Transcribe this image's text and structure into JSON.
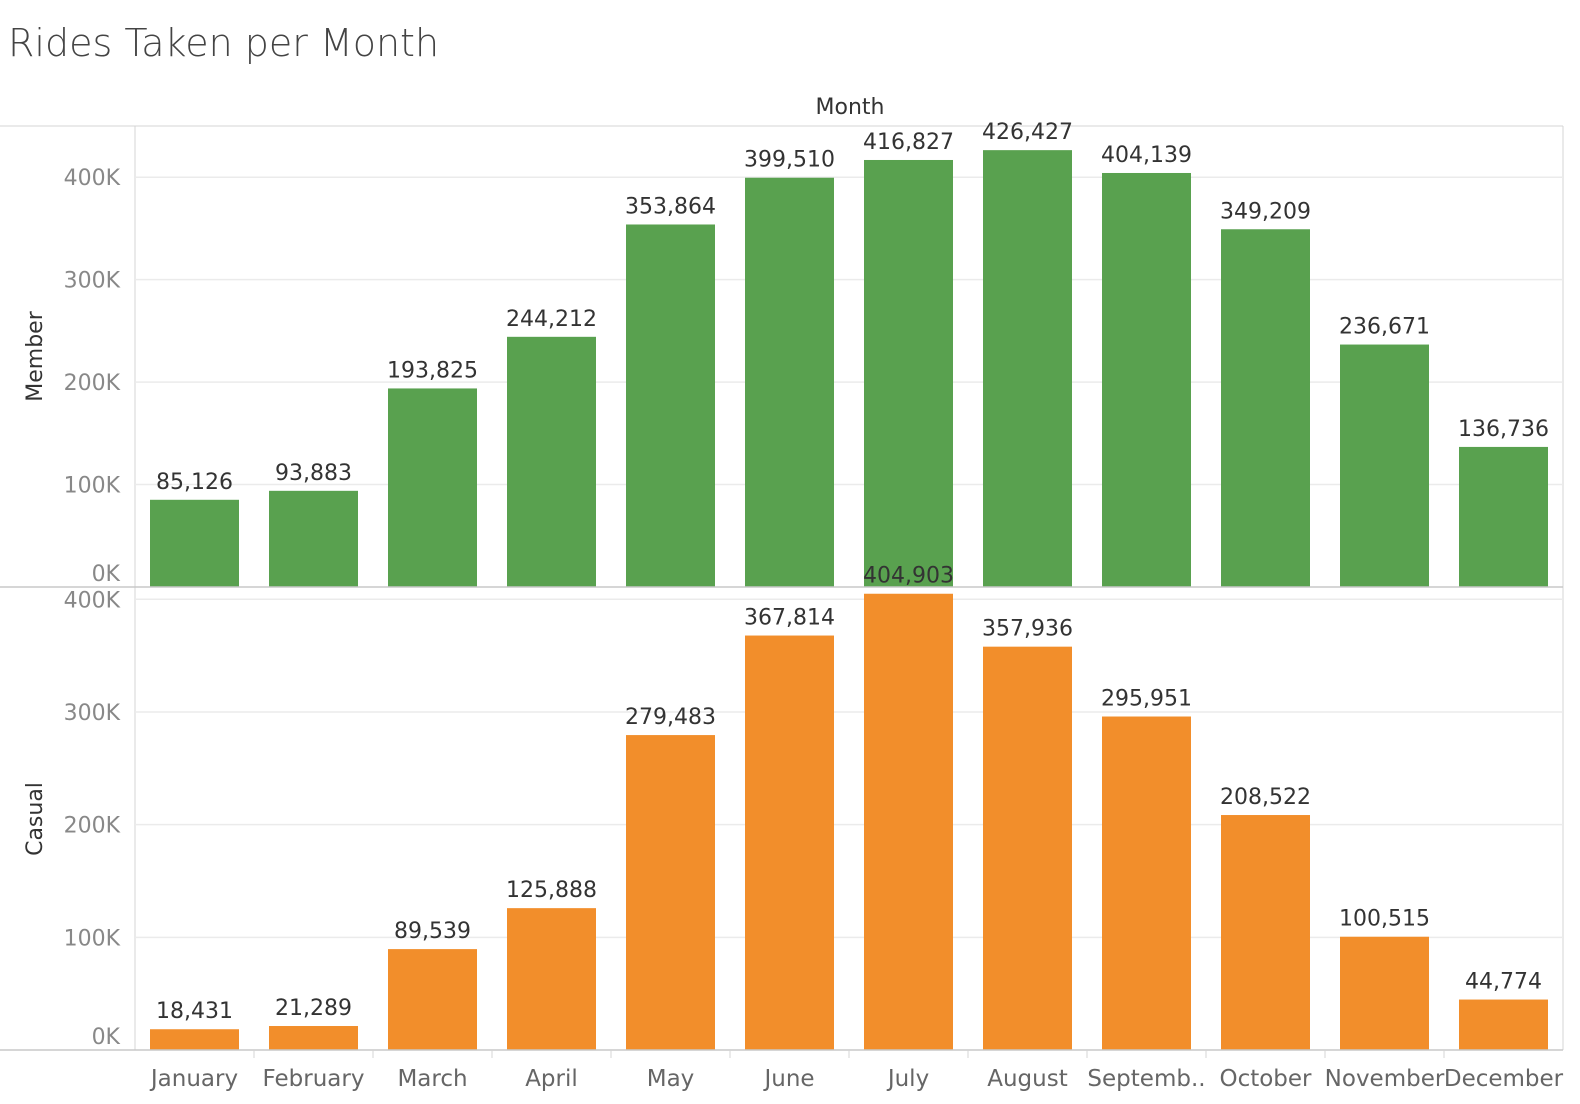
{
  "chart_data": {
    "type": "bar",
    "title": "Rides Taken per Month",
    "column_header": "Month",
    "categories": [
      "January",
      "February",
      "March",
      "April",
      "May",
      "June",
      "July",
      "August",
      "Septemb..",
      "October",
      "November",
      "December"
    ],
    "panels": [
      {
        "name": "Member",
        "color": "#59a14f",
        "values": [
          85126,
          93883,
          193825,
          244212,
          353864,
          399510,
          416827,
          426427,
          404139,
          349209,
          236671,
          136736
        ],
        "labels": [
          "85,126",
          "93,883",
          "193,825",
          "244,212",
          "353,864",
          "399,510",
          "416,827",
          "426,427",
          "404,139",
          "349,209",
          "236,671",
          "136,736"
        ],
        "ylim": [
          0,
          450000
        ],
        "ticks": [
          0,
          100000,
          200000,
          300000,
          400000
        ],
        "tick_labels": [
          "0K",
          "100K",
          "200K",
          "300K",
          "400K"
        ]
      },
      {
        "name": "Casual",
        "color": "#f28e2b",
        "values": [
          18431,
          21289,
          89539,
          125888,
          279483,
          367814,
          404903,
          357936,
          295951,
          208522,
          100515,
          44774
        ],
        "labels": [
          "18,431",
          "21,289",
          "89,539",
          "125,888",
          "279,483",
          "367,814",
          "404,903",
          "357,936",
          "295,951",
          "208,522",
          "100,515",
          "44,774"
        ],
        "ylim": [
          0,
          410000
        ],
        "ticks": [
          0,
          100000,
          200000,
          300000,
          400000
        ],
        "tick_labels": [
          "0K",
          "100K",
          "200K",
          "300K",
          "400K"
        ]
      }
    ],
    "grid": true,
    "legend": "none"
  }
}
